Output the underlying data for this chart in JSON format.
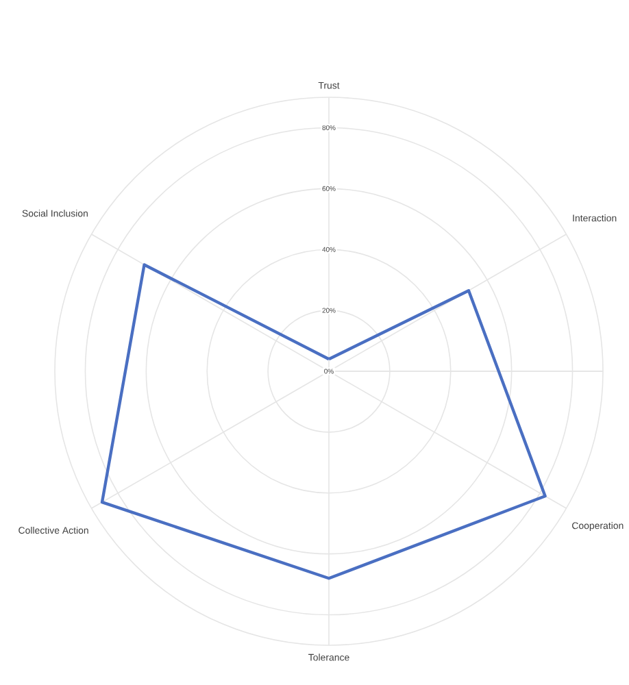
{
  "chart_data": {
    "type": "radar",
    "categories": [
      "Trust",
      "Interaction",
      "Cooperation",
      "Tolerance",
      "Collective Action",
      "Social Inclusion"
    ],
    "series": [
      {
        "color": "#4a6fc2",
        "values": [
          4,
          53,
          82,
          68,
          86,
          70
        ]
      }
    ],
    "ylim": [
      0,
      90
    ],
    "yticks": [
      {
        "value": 0,
        "label": "0%"
      },
      {
        "value": 20,
        "label": "20%"
      },
      {
        "value": 40,
        "label": "40%"
      },
      {
        "value": 60,
        "label": "60%"
      },
      {
        "value": 80,
        "label": "80%"
      }
    ],
    "grid": true,
    "marker": "none",
    "line_style": "solid"
  }
}
